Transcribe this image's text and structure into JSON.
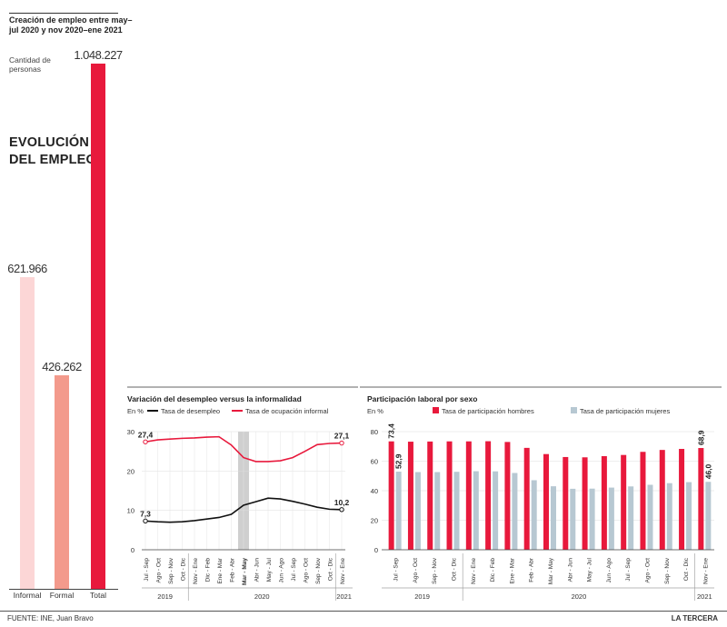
{
  "creation_panel": {
    "title": "Creación de empleo entre may–jul 2020 y nov 2020–ene 2021",
    "unit": "Cantidad de personas",
    "section_title": "EVOLUCIÓN DEL EMPLEO"
  },
  "chart_data": [
    {
      "type": "bar",
      "categories": [
        "Informal",
        "Formal",
        "Total"
      ],
      "values": [
        621966,
        426262,
        1048227
      ],
      "value_labels": [
        "621.966",
        "426.262",
        "1.048.227"
      ],
      "colors": [
        "#fcd6d6",
        "#f39a8c",
        "#e8193c"
      ]
    },
    {
      "type": "line",
      "title": "Variación del desempleo versus la informalidad",
      "ylabel": "En %",
      "ylim": [
        0,
        30
      ],
      "yticks": [
        0,
        10,
        20,
        30
      ],
      "grid": true,
      "categories": [
        "Jul - Sep",
        "Ago - Oct",
        "Sep - Nov",
        "Oct - Dic",
        "Nov - Ene",
        "Dic - Feb",
        "Ene - Mar",
        "Feb - Abr",
        "Mar - May",
        "Abr - Jun",
        "May - Jul",
        "Jun - Ago",
        "Jul - Sep",
        "Ago - Oct",
        "Sep - Nov",
        "Oct - Dic",
        "Nov - Ene"
      ],
      "highlight_category": "Mar - May",
      "years": [
        "2019",
        "2020",
        "2021"
      ],
      "series": [
        {
          "name": "Tasa de desempleo",
          "color": "#111111",
          "values": [
            7.3,
            7.1,
            7.0,
            7.1,
            7.4,
            7.8,
            8.2,
            9.0,
            11.3,
            12.2,
            13.1,
            12.9,
            12.3,
            11.6,
            10.8,
            10.3,
            10.2
          ],
          "labels": {
            "0": "7,3",
            "16": "10,2"
          }
        },
        {
          "name": "Tasa de ocupación informal",
          "color": "#e8193c",
          "values": [
            27.4,
            27.9,
            28.1,
            28.3,
            28.4,
            28.6,
            28.7,
            26.6,
            23.4,
            22.4,
            22.4,
            22.6,
            23.4,
            25.0,
            26.7,
            27.0,
            27.1
          ],
          "labels": {
            "0": "27,4",
            "16": "27,1"
          }
        }
      ]
    },
    {
      "type": "bar",
      "title": "Participación laboral por sexo",
      "ylabel": "En %",
      "ylim": [
        0,
        80
      ],
      "yticks": [
        0,
        20,
        40,
        60,
        80
      ],
      "grid": true,
      "categories": [
        "Jul - Sep",
        "Ago - Oct",
        "Sep - Nov",
        "Oct - Dic",
        "Nov - Ene",
        "Dic - Feb",
        "Ene - Mar",
        "Feb - Abr",
        "Mar - May",
        "Abr - Jun",
        "May - Jul",
        "Jun - Ago",
        "Jul - Sep",
        "Ago - Oct",
        "Sep - Nov",
        "Oct - Dic",
        "Nov - Ene"
      ],
      "years": [
        "2019",
        "2020",
        "2021"
      ],
      "series": [
        {
          "name": "Tasa de participación hombres",
          "color": "#e8193c",
          "values": [
            73.4,
            73.2,
            73.3,
            73.4,
            73.4,
            73.5,
            73.0,
            69.0,
            64.8,
            62.8,
            62.6,
            63.4,
            64.2,
            66.3,
            67.6,
            68.3,
            68.9
          ],
          "labels": {
            "0": "73,4",
            "16": "68,9"
          }
        },
        {
          "name": "Tasa de participación mujeres",
          "color": "#b7c8d2",
          "values": [
            52.9,
            52.6,
            52.6,
            52.8,
            53.2,
            53.1,
            52.0,
            47.1,
            43.0,
            41.3,
            41.4,
            42.1,
            42.9,
            44.0,
            45.1,
            45.8,
            46.0
          ],
          "labels": {
            "0": "52,9",
            "16": "46,0"
          }
        }
      ]
    }
  ],
  "footer": {
    "source": "FUENTE: INE, Juan Bravo",
    "brand": "LA TERCERA"
  }
}
